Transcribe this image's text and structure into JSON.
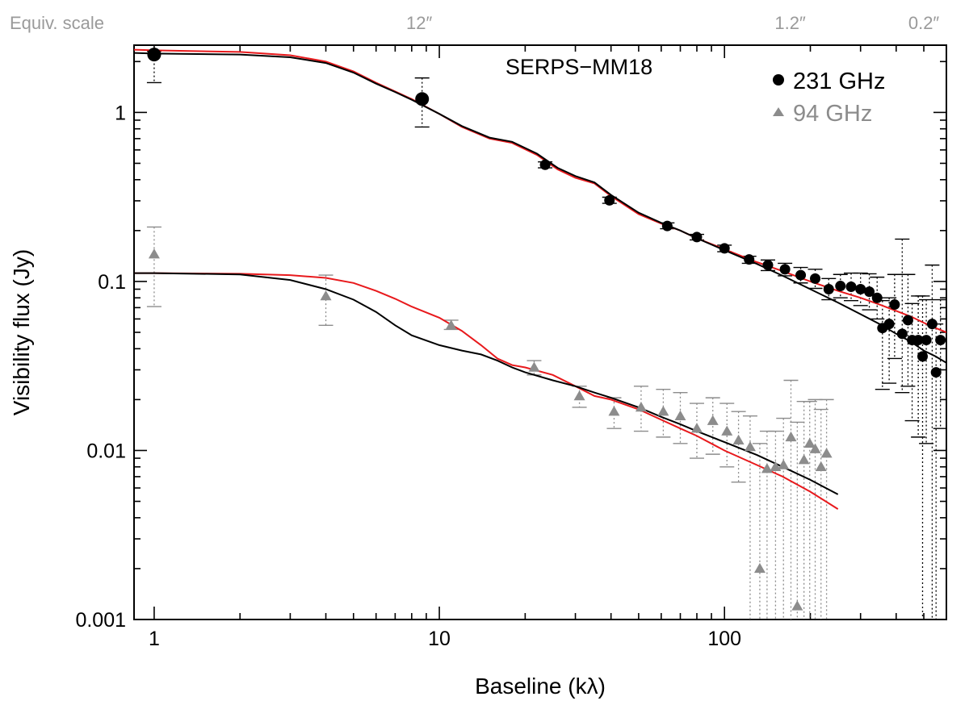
{
  "chart_data": {
    "type": "scatter",
    "title": "SERPS−MM18",
    "xlabel": "Baseline (kλ)",
    "ylabel": "Visibility flux (Jy)",
    "xscale": "log",
    "yscale": "log",
    "xlim": [
      0.85,
      600
    ],
    "ylim": [
      0.001,
      2.5
    ],
    "x_ticks": [
      {
        "value": 1,
        "label": "1"
      },
      {
        "value": 10,
        "label": "10"
      },
      {
        "value": 100,
        "label": "100"
      }
    ],
    "y_ticks": [
      {
        "value": 0.001,
        "label": "0.001"
      },
      {
        "value": 0.01,
        "label": "0.01"
      },
      {
        "value": 0.1,
        "label": "0.1"
      },
      {
        "value": 1,
        "label": "1"
      }
    ],
    "top_axis": {
      "label": "Equiv. scale",
      "ticks": [
        {
          "value": 8.5,
          "label": "12″"
        },
        {
          "value": 170,
          "label": "1.2″"
        },
        {
          "value": 500,
          "label": "0.2″"
        }
      ]
    },
    "legend": {
      "position": "top-right",
      "entries": [
        {
          "label": "231 GHz",
          "marker": "circle",
          "color": "#000000"
        },
        {
          "label": "94 GHz",
          "marker": "triangle",
          "color": "#8c8c8c"
        }
      ]
    },
    "colors": {
      "data231": "#000000",
      "data94": "#8c8c8c",
      "model_red": "#e8191c",
      "model_black": "#000000",
      "top_axis_text": "#9a9a9a"
    },
    "series": [
      {
        "name": "231 GHz",
        "marker": "circle",
        "points": [
          {
            "x": 1.0,
            "y": 2.2,
            "lo": 1.5,
            "hi": 2.3
          },
          {
            "x": 8.7,
            "y": 1.2,
            "lo": 0.82,
            "hi": 1.6
          },
          {
            "x": 23.5,
            "y": 0.49,
            "lo": 0.47,
            "hi": 0.51
          },
          {
            "x": 39.5,
            "y": 0.302,
            "lo": 0.29,
            "hi": 0.315
          },
          {
            "x": 63,
            "y": 0.213,
            "lo": 0.205,
            "hi": 0.222
          },
          {
            "x": 80,
            "y": 0.183,
            "lo": 0.176,
            "hi": 0.19
          },
          {
            "x": 100,
            "y": 0.157,
            "lo": 0.15,
            "hi": 0.164
          },
          {
            "x": 122,
            "y": 0.135,
            "lo": 0.128,
            "hi": 0.141
          },
          {
            "x": 142,
            "y": 0.125,
            "lo": 0.116,
            "hi": 0.134
          },
          {
            "x": 163,
            "y": 0.118,
            "lo": 0.108,
            "hi": 0.128
          },
          {
            "x": 185,
            "y": 0.109,
            "lo": 0.098,
            "hi": 0.121
          },
          {
            "x": 208,
            "y": 0.104,
            "lo": 0.091,
            "hi": 0.118
          },
          {
            "x": 232,
            "y": 0.09,
            "lo": 0.078,
            "hi": 0.104
          },
          {
            "x": 255,
            "y": 0.094,
            "lo": 0.08,
            "hi": 0.11
          },
          {
            "x": 278,
            "y": 0.093,
            "lo": 0.077,
            "hi": 0.112
          },
          {
            "x": 300,
            "y": 0.09,
            "lo": 0.072,
            "hi": 0.112
          },
          {
            "x": 322,
            "y": 0.087,
            "lo": 0.068,
            "hi": 0.111
          },
          {
            "x": 343,
            "y": 0.08,
            "lo": 0.06,
            "hi": 0.106
          },
          {
            "x": 358,
            "y": 0.053,
            "lo": 0.023,
            "hi": 0.077
          },
          {
            "x": 378,
            "y": 0.056,
            "lo": 0.025,
            "hi": 0.08
          },
          {
            "x": 395,
            "y": 0.073,
            "lo": 0.035,
            "hi": 0.11
          },
          {
            "x": 420,
            "y": 0.049,
            "lo": 0.022,
            "hi": 0.178
          },
          {
            "x": 440,
            "y": 0.059,
            "lo": 0.024,
            "hi": 0.11
          },
          {
            "x": 455,
            "y": 0.045,
            "lo": 0.015,
            "hi": 0.074
          },
          {
            "x": 478,
            "y": 0.045,
            "lo": 0.012,
            "hi": 0.082
          },
          {
            "x": 495,
            "y": 0.036,
            "lo": 0.001,
            "hi": 0.082
          },
          {
            "x": 510,
            "y": 0.045,
            "lo": 0.011,
            "hi": 0.078
          },
          {
            "x": 535,
            "y": 0.056,
            "lo": 0.001,
            "hi": 0.125
          },
          {
            "x": 552,
            "y": 0.029,
            "lo": 0.001,
            "hi": 0.056
          },
          {
            "x": 572,
            "y": 0.045,
            "lo": 0.0135,
            "hi": 0.078
          }
        ]
      },
      {
        "name": "94 GHz",
        "marker": "triangle",
        "points": [
          {
            "x": 1.0,
            "y": 0.145,
            "lo": 0.071,
            "hi": 0.21
          },
          {
            "x": 4.0,
            "y": 0.082,
            "lo": 0.055,
            "hi": 0.109
          },
          {
            "x": 11.0,
            "y": 0.055,
            "lo": 0.052,
            "hi": 0.059
          },
          {
            "x": 21.5,
            "y": 0.031,
            "lo": 0.028,
            "hi": 0.034
          },
          {
            "x": 31,
            "y": 0.021,
            "lo": 0.018,
            "hi": 0.024
          },
          {
            "x": 41,
            "y": 0.017,
            "lo": 0.0135,
            "hi": 0.0205
          },
          {
            "x": 51,
            "y": 0.018,
            "lo": 0.013,
            "hi": 0.024
          },
          {
            "x": 61,
            "y": 0.017,
            "lo": 0.012,
            "hi": 0.023
          },
          {
            "x": 70,
            "y": 0.016,
            "lo": 0.011,
            "hi": 0.022
          },
          {
            "x": 80,
            "y": 0.0135,
            "lo": 0.009,
            "hi": 0.019
          },
          {
            "x": 91,
            "y": 0.015,
            "lo": 0.0095,
            "hi": 0.0205
          },
          {
            "x": 102,
            "y": 0.013,
            "lo": 0.008,
            "hi": 0.019
          },
          {
            "x": 112,
            "y": 0.0115,
            "lo": 0.0065,
            "hi": 0.017
          },
          {
            "x": 123,
            "y": 0.0105,
            "lo": 0.001,
            "hi": 0.016
          },
          {
            "x": 133,
            "y": 0.002,
            "lo": 0.001,
            "hi": 0.011
          },
          {
            "x": 141,
            "y": 0.0078,
            "lo": 0.001,
            "hi": 0.013
          },
          {
            "x": 151,
            "y": 0.008,
            "lo": 0.001,
            "hi": 0.013
          },
          {
            "x": 161,
            "y": 0.0082,
            "lo": 0.001,
            "hi": 0.0155
          },
          {
            "x": 171,
            "y": 0.012,
            "lo": 0.001,
            "hi": 0.026
          },
          {
            "x": 180,
            "y": 0.0012,
            "lo": 0.001,
            "hi": 0.0147
          },
          {
            "x": 190,
            "y": 0.0088,
            "lo": 0.001,
            "hi": 0.0195
          },
          {
            "x": 199,
            "y": 0.011,
            "lo": 0.001,
            "hi": 0.0195
          },
          {
            "x": 208,
            "y": 0.0102,
            "lo": 0.001,
            "hi": 0.02
          },
          {
            "x": 218,
            "y": 0.008,
            "lo": 0.001,
            "hi": 0.0175
          },
          {
            "x": 228,
            "y": 0.0096,
            "lo": 0.001,
            "hi": 0.02
          }
        ]
      }
    ],
    "models": [
      {
        "name": "231 GHz model (red)",
        "color": "#e8191c",
        "x": [
          0.85,
          1,
          2,
          3,
          4,
          5,
          6,
          7,
          8,
          10,
          12,
          15,
          18,
          22,
          26,
          30,
          35,
          40,
          50,
          60,
          70,
          80,
          100,
          130,
          160,
          200,
          250,
          300,
          350,
          400,
          450,
          500,
          550,
          600
        ],
        "y": [
          2.35,
          2.33,
          2.28,
          2.18,
          2.0,
          1.75,
          1.5,
          1.33,
          1.2,
          0.98,
          0.82,
          0.7,
          0.66,
          0.56,
          0.46,
          0.41,
          0.38,
          0.32,
          0.25,
          0.22,
          0.2,
          0.18,
          0.155,
          0.13,
          0.115,
          0.1,
          0.088,
          0.08,
          0.073,
          0.067,
          0.062,
          0.057,
          0.053,
          0.05
        ]
      },
      {
        "name": "231 GHz model (black)",
        "color": "#000000",
        "x": [
          0.85,
          1,
          2,
          3,
          4,
          5,
          6,
          7,
          8,
          10,
          12,
          15,
          18,
          22,
          26,
          30,
          35,
          40,
          50,
          60,
          70,
          80,
          100,
          130,
          160,
          200,
          250,
          300,
          350,
          400,
          450,
          500,
          550,
          600
        ],
        "y": [
          2.25,
          2.23,
          2.2,
          2.12,
          1.96,
          1.72,
          1.48,
          1.32,
          1.19,
          0.98,
          0.83,
          0.71,
          0.67,
          0.57,
          0.47,
          0.42,
          0.385,
          0.325,
          0.255,
          0.222,
          0.2,
          0.18,
          0.153,
          0.127,
          0.108,
          0.09,
          0.075,
          0.064,
          0.056,
          0.049,
          0.044,
          0.039,
          0.036,
          0.033
        ]
      },
      {
        "name": "94 GHz model (red)",
        "color": "#e8191c",
        "x": [
          0.85,
          1,
          2,
          3,
          4,
          5,
          6,
          7,
          8,
          10,
          12,
          14,
          16,
          18,
          20,
          25,
          30,
          35,
          40,
          50,
          60,
          70,
          80,
          100,
          130,
          160,
          200,
          250
        ],
        "y": [
          0.112,
          0.112,
          0.111,
          0.109,
          0.105,
          0.098,
          0.088,
          0.079,
          0.071,
          0.061,
          0.051,
          0.042,
          0.035,
          0.032,
          0.031,
          0.028,
          0.024,
          0.021,
          0.02,
          0.0175,
          0.0152,
          0.0135,
          0.0122,
          0.01,
          0.0082,
          0.007,
          0.0057,
          0.0045
        ]
      },
      {
        "name": "94 GHz model (black)",
        "color": "#000000",
        "x": [
          0.85,
          1,
          2,
          3,
          4,
          5,
          6,
          7,
          8,
          10,
          12,
          14,
          16,
          18,
          20,
          25,
          30,
          35,
          40,
          50,
          60,
          70,
          80,
          100,
          130,
          160,
          200,
          250
        ],
        "y": [
          0.112,
          0.112,
          0.11,
          0.102,
          0.09,
          0.078,
          0.066,
          0.055,
          0.048,
          0.042,
          0.039,
          0.037,
          0.034,
          0.031,
          0.029,
          0.026,
          0.024,
          0.022,
          0.0205,
          0.018,
          0.0158,
          0.0143,
          0.013,
          0.0112,
          0.0094,
          0.008,
          0.0067,
          0.0055
        ]
      }
    ]
  }
}
